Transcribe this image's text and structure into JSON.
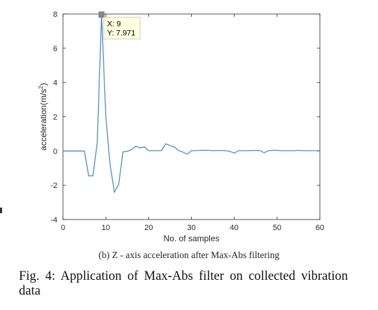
{
  "chart_data": {
    "type": "line",
    "xlabel": "No. of samples",
    "ylabel_main": "acceleration(m/s",
    "ylabel_sup": "2",
    "ylabel_close": ")",
    "xlim": [
      0,
      60
    ],
    "ylim": [
      -4,
      8
    ],
    "xticks": [
      0,
      10,
      20,
      30,
      40,
      50,
      60
    ],
    "yticks": [
      -4,
      -2,
      0,
      2,
      4,
      6,
      8
    ],
    "grid": false,
    "line_color": "#4a90c8",
    "x": [
      0,
      1,
      2,
      3,
      4,
      5,
      6,
      7,
      8,
      9,
      10,
      11,
      12,
      13,
      14,
      15,
      16,
      17,
      18,
      19,
      20,
      21,
      22,
      23,
      24,
      25,
      26,
      27,
      28,
      29,
      30,
      31,
      32,
      33,
      34,
      35,
      36,
      37,
      38,
      39,
      40,
      41,
      42,
      43,
      44,
      45,
      46,
      47,
      48,
      49,
      50,
      51,
      52,
      53,
      54,
      55,
      56,
      57,
      58,
      59,
      60
    ],
    "y": [
      0,
      0,
      0,
      0,
      0,
      0,
      -1.45,
      -1.45,
      0.5,
      7.971,
      2,
      -0.8,
      -2.4,
      -1.95,
      -0.05,
      -0.02,
      0.08,
      0.28,
      0.18,
      0.24,
      0.02,
      0.02,
      0.02,
      0.03,
      0.42,
      0.32,
      0.24,
      0.02,
      -0.06,
      -0.18,
      0.02,
      0.02,
      0.04,
      0.04,
      0.04,
      0.02,
      0.03,
      0.03,
      0.02,
      -0.02,
      -0.12,
      0.02,
      0.02,
      0.02,
      0.03,
      0.03,
      0.03,
      -0.1,
      0.02,
      0.04,
      0.04,
      0.02,
      0.02,
      0.02,
      0.02,
      0.04,
      0.02,
      0.02,
      0.02,
      0.02,
      0.02
    ],
    "datatip": {
      "x": 9,
      "y": 7.971,
      "x_text": "X: 9",
      "y_text": "Y: 7.971"
    }
  },
  "caption": {
    "sub": "(b) Z - axis acceleration after Max-Abs filtering",
    "main": "Fig. 4: Application of Max-Abs filter on collected vibration data"
  }
}
